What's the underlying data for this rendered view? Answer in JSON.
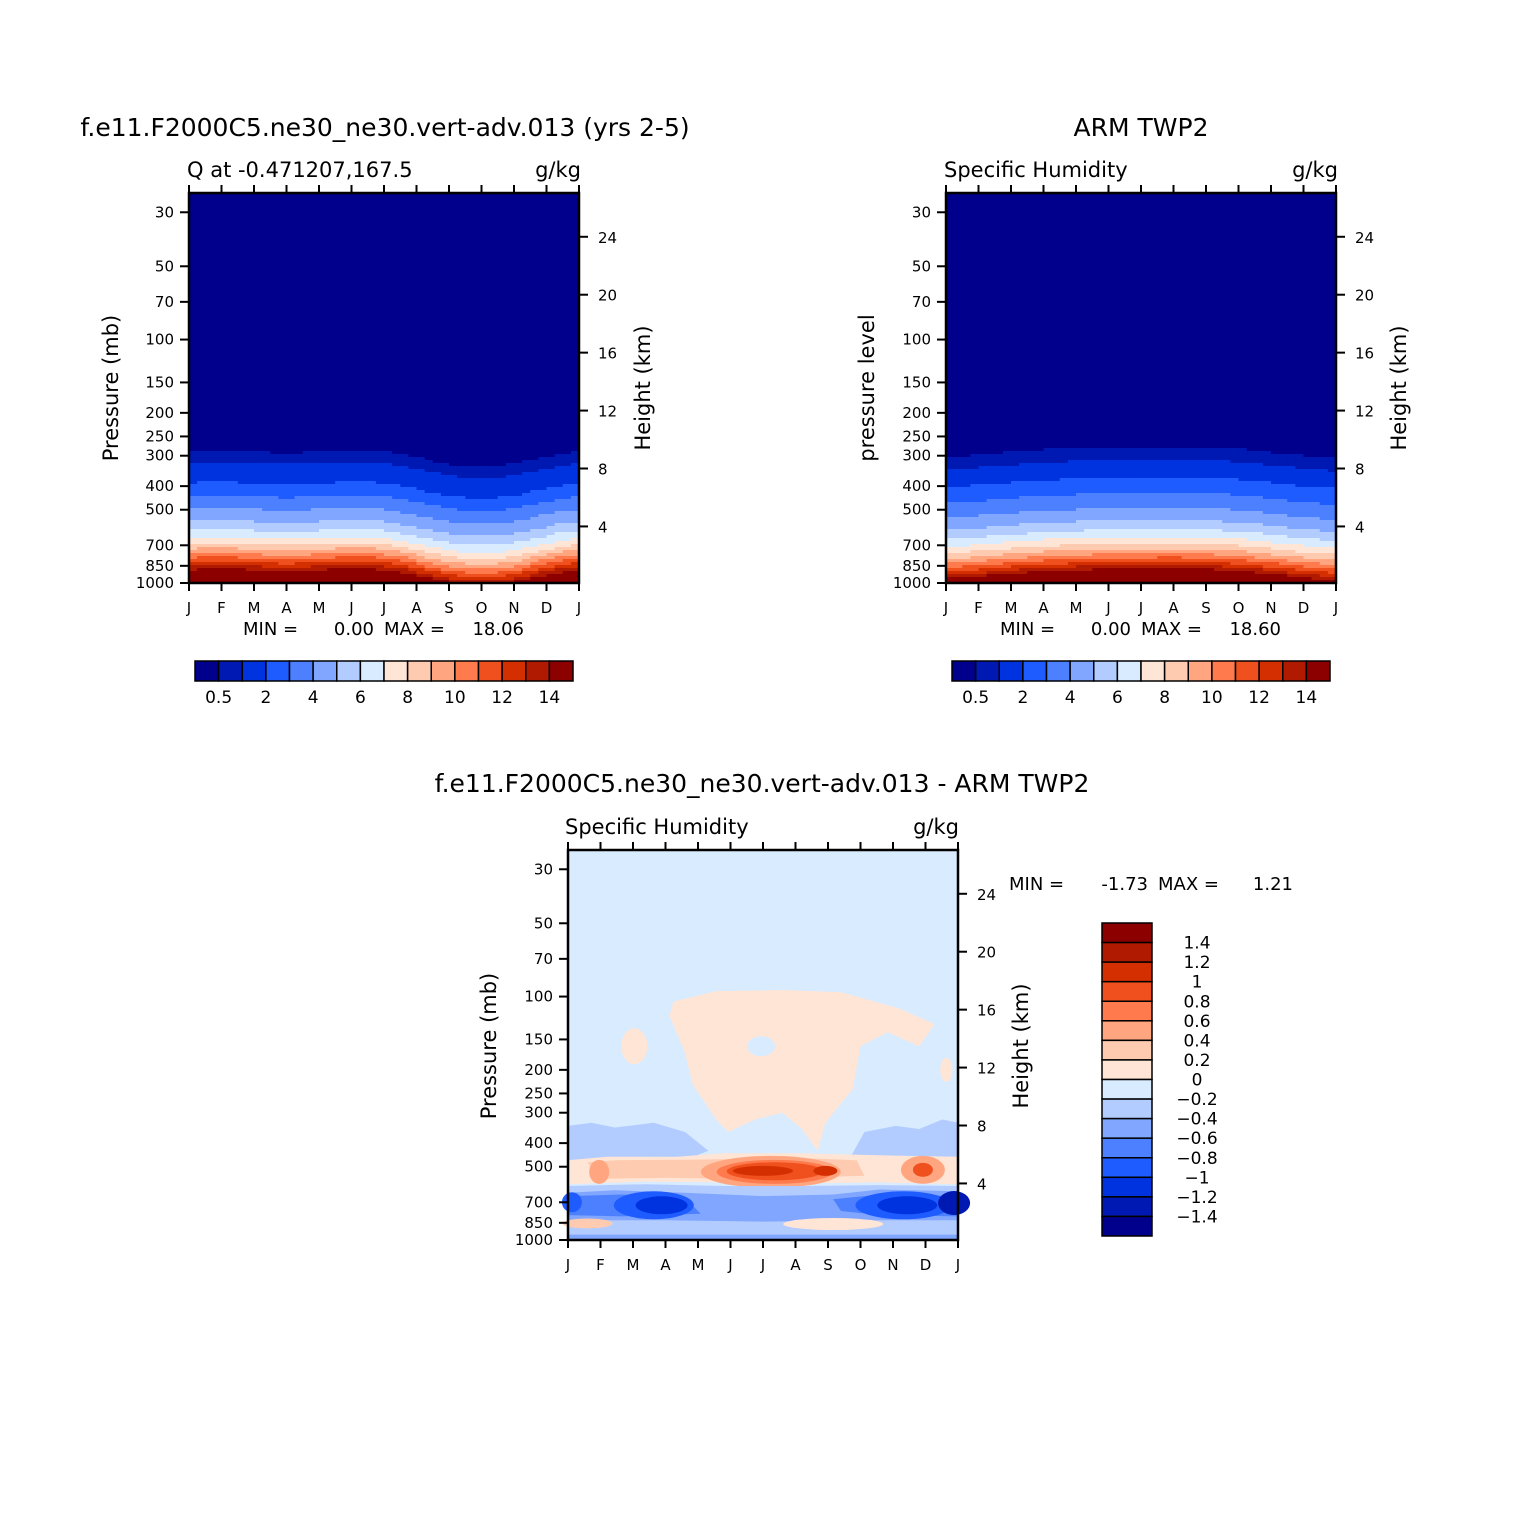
{
  "chart_data": [
    {
      "type": "heatmap",
      "title": "f.e11.F2000C5.ne30_ne30.vert-adv.013 (yrs 2-5)",
      "left_label": "Q at -0.471207,167.5",
      "units": "g/kg",
      "ylabel": "Pressure (mb)",
      "ylabel_right": "Height (km)",
      "x_ticks": [
        "J",
        "F",
        "M",
        "A",
        "M",
        "J",
        "J",
        "A",
        "S",
        "O",
        "N",
        "D",
        "J"
      ],
      "y_ticks": [
        30,
        50,
        70,
        100,
        150,
        200,
        250,
        300,
        400,
        500,
        700,
        850,
        1000
      ],
      "y_right_ticks": [
        4,
        8,
        12,
        16,
        20,
        24
      ],
      "ylim": [
        1000,
        25
      ],
      "y_scale": "log",
      "stats": {
        "min_label": "MIN =",
        "min": "0.00",
        "max_label": "MAX =",
        "max": "18.06"
      },
      "colorbar": {
        "orientation": "horizontal",
        "labels": [
          "0.5",
          "2",
          "4",
          "6",
          "8",
          "10",
          "12",
          "14"
        ],
        "colors": [
          "#00008c",
          "#0019b2",
          "#0033e0",
          "#1f5cff",
          "#4d80ff",
          "#80a6ff",
          "#b3ccff",
          "#d9ebff",
          "#ffe5d5",
          "#ffcbb0",
          "#ffa680",
          "#ff7a4d",
          "#f0501e",
          "#d42f00",
          "#b01a00",
          "#8c0000"
        ]
      },
      "profile": [
        {
          "p": 1000,
          "q": 18.0
        },
        {
          "p": 925,
          "q": 14.2
        },
        {
          "p": 850,
          "q": 11.8
        },
        {
          "p": 775,
          "q": 9.5
        },
        {
          "p": 700,
          "q": 7.4
        },
        {
          "p": 600,
          "q": 5.3
        },
        {
          "p": 500,
          "q": 3.7
        },
        {
          "p": 400,
          "q": 1.9
        },
        {
          "p": 350,
          "q": 1.2
        },
        {
          "p": 300,
          "q": 0.5
        },
        {
          "p": 250,
          "q": 0.15
        },
        {
          "p": 200,
          "q": 0.05
        },
        {
          "p": 30,
          "q": 0.0
        }
      ]
    },
    {
      "type": "heatmap",
      "title": "ARM TWP2",
      "left_label": "Specific Humidity",
      "units": "g/kg",
      "ylabel": "pressure level",
      "ylabel_right": "Height (km)",
      "x_ticks": [
        "J",
        "F",
        "M",
        "A",
        "M",
        "J",
        "J",
        "A",
        "S",
        "O",
        "N",
        "D",
        "J"
      ],
      "y_ticks": [
        30,
        50,
        70,
        100,
        150,
        200,
        250,
        300,
        400,
        500,
        700,
        850,
        1000
      ],
      "y_right_ticks": [
        4,
        8,
        12,
        16,
        20,
        24
      ],
      "ylim": [
        1000,
        25
      ],
      "y_scale": "log",
      "stats": {
        "min_label": "MIN =",
        "min": "0.00",
        "max_label": "MAX =",
        "max": "18.60"
      },
      "colorbar": {
        "orientation": "horizontal",
        "labels": [
          "0.5",
          "2",
          "4",
          "6",
          "8",
          "10",
          "12",
          "14"
        ],
        "colors": [
          "#00008c",
          "#0019b2",
          "#0033e0",
          "#1f5cff",
          "#4d80ff",
          "#80a6ff",
          "#b3ccff",
          "#d9ebff",
          "#ffe5d5",
          "#ffcbb0",
          "#ffa680",
          "#ff7a4d",
          "#f0501e",
          "#d42f00",
          "#b01a00",
          "#8c0000"
        ]
      },
      "profile": [
        {
          "p": 1000,
          "q": 18.4
        },
        {
          "p": 925,
          "q": 14.6
        },
        {
          "p": 850,
          "q": 12.0
        },
        {
          "p": 775,
          "q": 9.6
        },
        {
          "p": 700,
          "q": 7.6
        },
        {
          "p": 600,
          "q": 5.4
        },
        {
          "p": 500,
          "q": 3.8
        },
        {
          "p": 400,
          "q": 2.3
        },
        {
          "p": 350,
          "q": 1.4
        },
        {
          "p": 300,
          "q": 0.6
        },
        {
          "p": 250,
          "q": 0.2
        },
        {
          "p": 200,
          "q": 0.05
        },
        {
          "p": 30,
          "q": 0.0
        }
      ]
    },
    {
      "type": "heatmap",
      "title": "f.e11.F2000C5.ne30_ne30.vert-adv.013 - ARM TWP2",
      "left_label": "Specific Humidity",
      "units": "g/kg",
      "ylabel": "Pressure (mb)",
      "ylabel_right": "Height (km)",
      "x_ticks": [
        "J",
        "F",
        "M",
        "A",
        "M",
        "J",
        "J",
        "A",
        "S",
        "O",
        "N",
        "D",
        "J"
      ],
      "y_ticks": [
        30,
        50,
        70,
        100,
        150,
        200,
        250,
        300,
        400,
        500,
        700,
        850,
        1000
      ],
      "y_right_ticks": [
        4,
        8,
        12,
        16,
        20,
        24
      ],
      "ylim": [
        1000,
        25
      ],
      "y_scale": "log",
      "stats": {
        "min_label": "MIN =",
        "min": "-1.73",
        "max_label": "MAX =",
        "max": "1.21"
      },
      "colorbar": {
        "orientation": "vertical",
        "labels": [
          "1.4",
          "1.2",
          "1",
          "0.8",
          "0.6",
          "0.4",
          "0.2",
          "0",
          "-0.2",
          "-0.4",
          "-0.6",
          "-0.8",
          "-1",
          "-1.2",
          "-1.4"
        ],
        "colors": [
          "#8c0000",
          "#b01a00",
          "#d42f00",
          "#f0501e",
          "#ff7a4d",
          "#ffa680",
          "#ffcbb0",
          "#ffe5d5",
          "#d9ebff",
          "#b3ccff",
          "#80a6ff",
          "#4d80ff",
          "#1f5cff",
          "#0033e0",
          "#0019b2",
          "#00008c"
        ]
      }
    }
  ]
}
